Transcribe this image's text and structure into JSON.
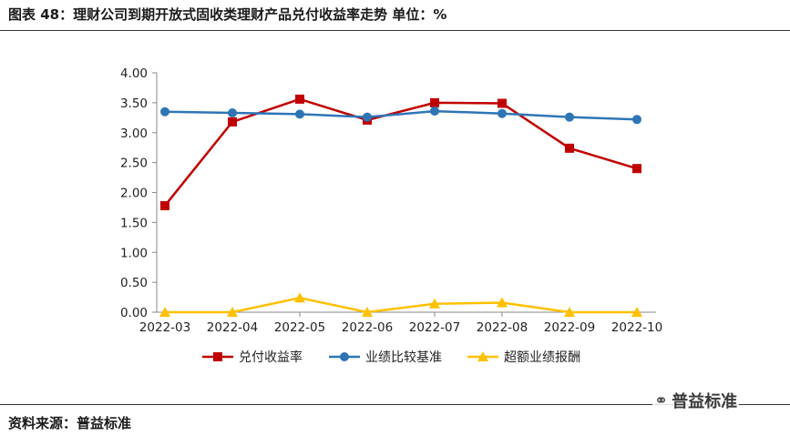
{
  "title": "图表 48：理财公司到期开放式固收类理财产品兑付收益率走势   单位：%",
  "source": "资料来源：普益标准",
  "watermark": "普益标准",
  "chart_data": {
    "type": "line",
    "categories": [
      "2022-03",
      "2022-04",
      "2022-05",
      "2022-06",
      "2022-07",
      "2022-08",
      "2022-09",
      "2022-10"
    ],
    "ylim": [
      0,
      4
    ],
    "yticks": [
      "0.00",
      "0.50",
      "1.00",
      "1.50",
      "2.00",
      "2.50",
      "3.00",
      "3.50",
      "4.00"
    ],
    "series": [
      {
        "name": "兑付收益率",
        "color": "#C00000",
        "marker": "square",
        "values": [
          1.78,
          3.18,
          3.56,
          3.21,
          3.5,
          3.49,
          2.74,
          2.4
        ]
      },
      {
        "name": "业绩比较基准",
        "color": "#2E75B6",
        "marker": "circle",
        "values": [
          3.35,
          3.33,
          3.31,
          3.26,
          3.36,
          3.32,
          3.26,
          3.22
        ]
      },
      {
        "name": "超额业绩报酬",
        "color": "#FFC000",
        "marker": "triangle",
        "values": [
          0.0,
          0.0,
          0.24,
          0.0,
          0.14,
          0.16,
          0.0,
          0.0
        ]
      }
    ],
    "grid": false,
    "legend_position": "bottom"
  }
}
